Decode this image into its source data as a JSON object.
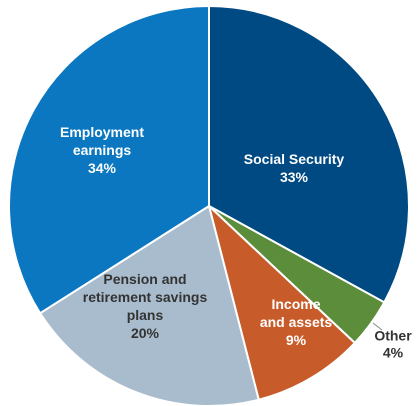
{
  "chart_data": {
    "type": "pie",
    "start_angle_deg": 0,
    "direction": "clockwise",
    "slices": [
      {
        "name": "Social Security",
        "value": 33,
        "pct_label": "33%",
        "color": "#004a84",
        "label_lines": [
          "Social Security",
          "33%"
        ]
      },
      {
        "name": "Other",
        "value": 4,
        "pct_label": "4%",
        "color": "#5b8d3a",
        "label_lines": [
          "Other",
          "4%"
        ]
      },
      {
        "name": "Income and assets",
        "value": 9,
        "pct_label": "9%",
        "color": "#c85b2a",
        "label_lines": [
          "Income",
          "and assets",
          "9%"
        ]
      },
      {
        "name": "Pension and retirement savings plans",
        "value": 20,
        "pct_label": "20%",
        "color": "#a9bccd",
        "label_lines": [
          "Pension and",
          "retirement savings",
          "plans",
          "20%"
        ]
      },
      {
        "name": "Employment earnings",
        "value": 34,
        "pct_label": "34%",
        "color": "#0a77c0",
        "label_lines": [
          "Employment",
          "earnings",
          "34%"
        ]
      }
    ]
  }
}
